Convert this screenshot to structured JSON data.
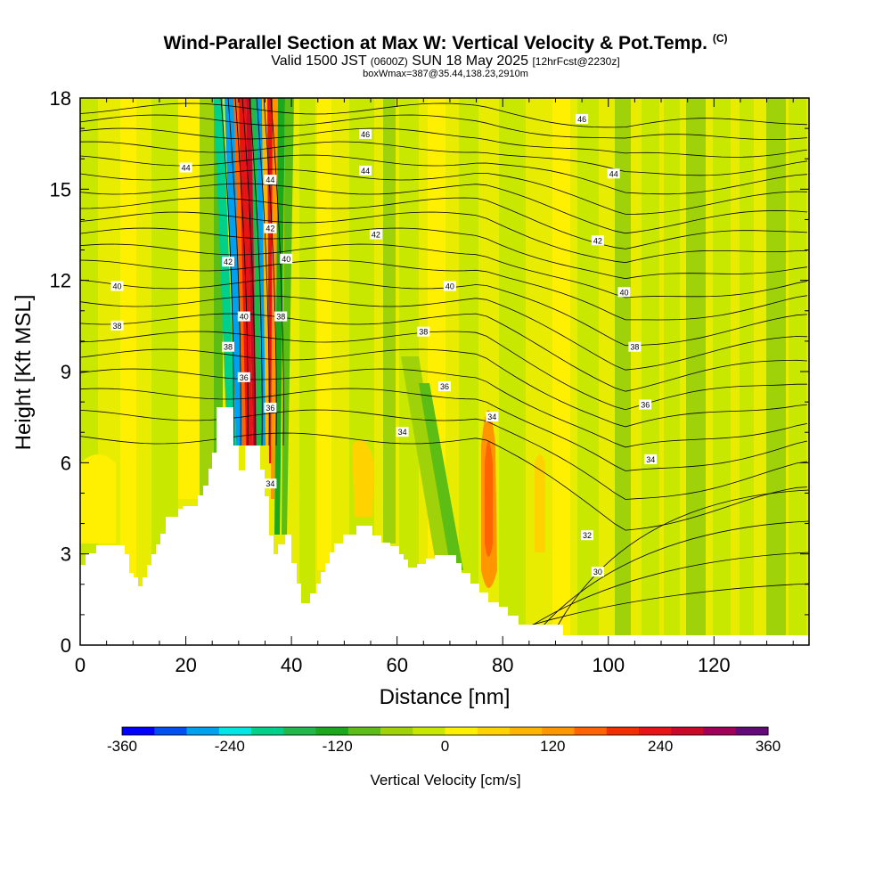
{
  "header": {
    "title": "Wind-Parallel Section at Max W: Vertical Velocity & Pot.Temp.",
    "copyright": "(C)",
    "valid_prefix": "Valid 1500 JST",
    "valid_utc": "(0600Z)",
    "valid_date": "SUN 18 May 2025",
    "forecast_info": "[12hrFcst@2230z]",
    "box_info": "boxWmax=387@35.44,138.23,2910m"
  },
  "chart_data": {
    "type": "heatmap",
    "xlabel": "Distance [nm]",
    "ylabel": "Height [Kft MSL]",
    "xlim": [
      0,
      138
    ],
    "ylim": [
      0,
      18
    ],
    "x_ticks": [
      0,
      20,
      40,
      60,
      80,
      100,
      120
    ],
    "y_ticks": [
      0,
      3,
      6,
      9,
      12,
      15,
      18
    ],
    "colorbar": {
      "label": "Vertical Velocity [cm/s]",
      "ticks": [
        -360,
        -240,
        -120,
        0,
        120,
        240,
        360
      ],
      "colors": [
        "#0000ff",
        "#0050f0",
        "#00a0f0",
        "#00e6e6",
        "#00d08a",
        "#20b848",
        "#1ca81c",
        "#5cbe14",
        "#a0d20a",
        "#c8e800",
        "#ffef00",
        "#ffd200",
        "#ffb400",
        "#ff9600",
        "#ff6400",
        "#f03000",
        "#e61414",
        "#c80a28",
        "#a0005a",
        "#640a78"
      ]
    },
    "contour_field": "Potential Temperature",
    "contour_labels": [
      {
        "x": 20,
        "y": 15.7,
        "t": "44"
      },
      {
        "x": 36,
        "y": 15.3,
        "t": "44"
      },
      {
        "x": 54,
        "y": 15.6,
        "t": "44"
      },
      {
        "x": 101,
        "y": 15.5,
        "t": "44"
      },
      {
        "x": 54,
        "y": 16.8,
        "t": "46"
      },
      {
        "x": 95,
        "y": 17.3,
        "t": "46"
      },
      {
        "x": 36,
        "y": 13.7,
        "t": "42"
      },
      {
        "x": 56,
        "y": 13.5,
        "t": "42"
      },
      {
        "x": 98,
        "y": 13.3,
        "t": "42"
      },
      {
        "x": 28,
        "y": 12.6,
        "t": "42"
      },
      {
        "x": 7,
        "y": 11.8,
        "t": "40"
      },
      {
        "x": 39,
        "y": 12.7,
        "t": "40"
      },
      {
        "x": 70,
        "y": 11.8,
        "t": "40"
      },
      {
        "x": 103,
        "y": 11.6,
        "t": "40"
      },
      {
        "x": 31,
        "y": 10.8,
        "t": "40"
      },
      {
        "x": 7,
        "y": 10.5,
        "t": "38"
      },
      {
        "x": 38,
        "y": 10.8,
        "t": "38"
      },
      {
        "x": 65,
        "y": 10.3,
        "t": "38"
      },
      {
        "x": 105,
        "y": 9.8,
        "t": "38"
      },
      {
        "x": 28,
        "y": 9.8,
        "t": "38"
      },
      {
        "x": 69,
        "y": 8.5,
        "t": "36"
      },
      {
        "x": 107,
        "y": 7.9,
        "t": "36"
      },
      {
        "x": 31,
        "y": 8.8,
        "t": "36"
      },
      {
        "x": 36,
        "y": 7.8,
        "t": "36"
      },
      {
        "x": 61,
        "y": 7.0,
        "t": "34"
      },
      {
        "x": 78,
        "y": 7.5,
        "t": "34"
      },
      {
        "x": 108,
        "y": 6.1,
        "t": "34"
      },
      {
        "x": 36,
        "y": 5.3,
        "t": "34"
      },
      {
        "x": 96,
        "y": 3.6,
        "t": "32"
      },
      {
        "x": 98,
        "y": 2.4,
        "t": "30"
      }
    ]
  }
}
